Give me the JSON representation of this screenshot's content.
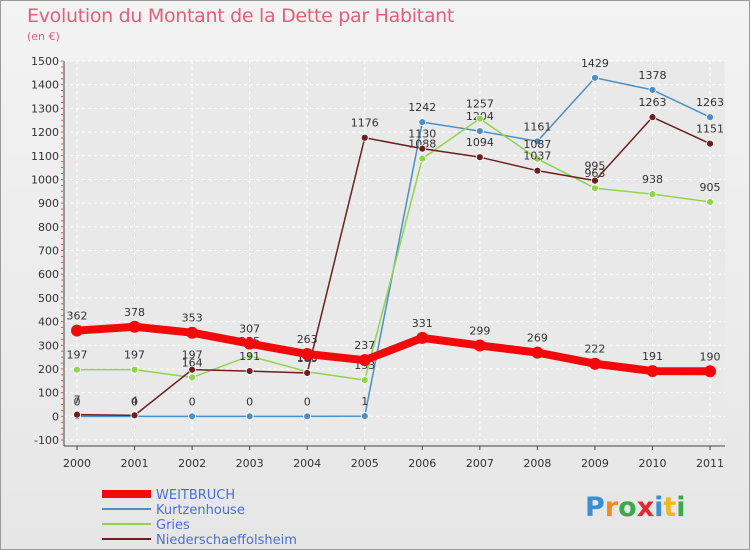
{
  "title": "Evolution du Montant de la Dette par Habitant",
  "subtitle": "(en €)",
  "brand": {
    "letters": [
      "P",
      "r",
      "o",
      "x",
      "i",
      "t",
      "i"
    ],
    "colors": [
      "#3a8fd6",
      "#f08a24",
      "#3aa84b",
      "#e8262f",
      "#3a8fd6",
      "#f0b81e",
      "#3aa84b"
    ]
  },
  "chart_data": {
    "type": "line",
    "x": [
      "2000",
      "2001",
      "2002",
      "2003",
      "2004",
      "2005",
      "2006",
      "2007",
      "2008",
      "2009",
      "2010",
      "2011"
    ],
    "yticks": [
      "-100",
      "0",
      "100",
      "200",
      "300",
      "400",
      "500",
      "600",
      "700",
      "800",
      "900",
      "1000",
      "1100",
      "1200",
      "1300",
      "1400",
      "1500"
    ],
    "ylim": [
      -100,
      1500
    ],
    "grid": true,
    "legend_position": "bottom-left",
    "series": [
      {
        "name": "WEITBRUCH",
        "color": "#f20a0a",
        "values": [
          362,
          378,
          353,
          307,
          263,
          237,
          331,
          299,
          269,
          222,
          191,
          190
        ],
        "labels": [
          "362",
          "378",
          "353",
          "307",
          "263",
          "237",
          "331",
          "299",
          "269",
          "222",
          "191",
          "190"
        ]
      },
      {
        "name": "Kurtzenhouse",
        "color": "#4a90c8",
        "values": [
          0,
          0,
          0,
          0,
          0,
          1,
          1242,
          1204,
          1161,
          1429,
          1378,
          1263
        ],
        "labels": [
          "0",
          "0",
          "0",
          "0",
          "0",
          "1",
          "1242",
          "1204",
          "1161",
          "1429",
          "1378",
          "1263"
        ]
      },
      {
        "name": "Gries",
        "color": "#8fd44a",
        "values": [
          197,
          197,
          164,
          255,
          188,
          153,
          1088,
          1257,
          1087,
          963,
          938,
          905
        ],
        "labels": [
          "197",
          "197",
          "164",
          "255",
          "188",
          "153",
          "1088",
          "1257",
          "1087",
          "963",
          "938",
          "905"
        ]
      },
      {
        "name": "Niederschaeffolsheim",
        "color": "#6e1f1f",
        "values": [
          7,
          4,
          197,
          191,
          183,
          1176,
          1130,
          1094,
          1037,
          995,
          1263,
          1151
        ],
        "labels": [
          "7",
          "4",
          "197",
          "191",
          "183",
          "1176",
          "1130",
          "1094",
          "1037",
          "995",
          "1263",
          "1151"
        ]
      }
    ]
  }
}
